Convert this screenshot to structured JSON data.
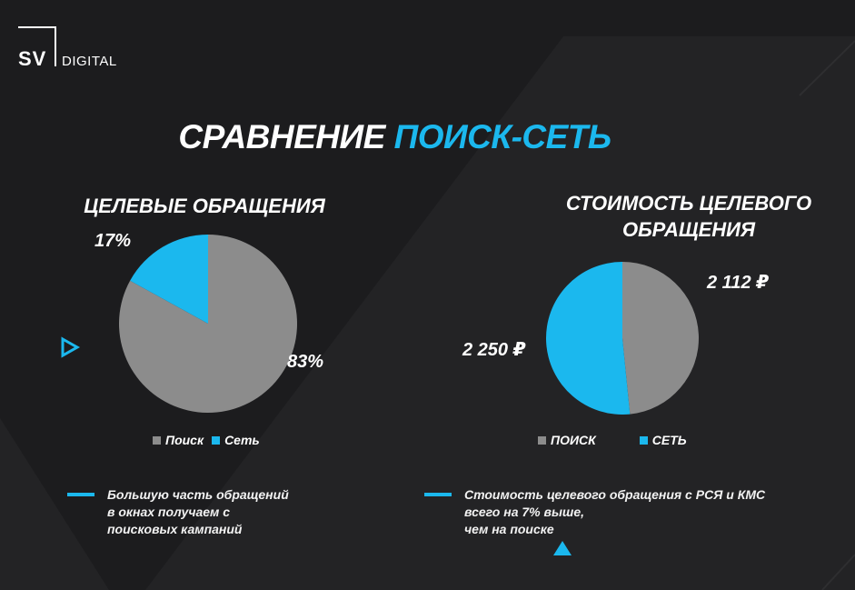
{
  "logo": {
    "sv": "SV",
    "digital": "DIGITAL"
  },
  "title": {
    "main": "СРАВНЕНИЕ ",
    "accent": "ПОИСК-СЕТЬ"
  },
  "colors": {
    "accent": "#1bb8ee",
    "gray": "#8c8c8c",
    "background": "#1c1c1e"
  },
  "chart_data": [
    {
      "type": "pie",
      "title": "ЦЕЛЕВЫЕ ОБРАЩЕНИЯ",
      "categories": [
        "Поиск",
        "Сеть"
      ],
      "values": [
        83,
        17
      ],
      "labels": [
        "83%",
        "17%"
      ],
      "colors": [
        "#8c8c8c",
        "#1bb8ee"
      ],
      "legend": "bottom"
    },
    {
      "type": "pie",
      "title": "СТОИМОСТЬ ЦЕЛЕВОГО ОБРАЩЕНИЯ",
      "categories": [
        "ПОИСК",
        "СЕТЬ"
      ],
      "values": [
        2112,
        2250
      ],
      "labels": [
        "2 112 ₽",
        "2 250 ₽"
      ],
      "colors": [
        "#8c8c8c",
        "#1bb8ee"
      ],
      "legend": "bottom"
    }
  ],
  "notes": {
    "left": "Большую часть обращений\nв окнах получаем с\nпоисковых кампаний",
    "right": "Стоимость целевого обращения с РСЯ и КМС\nвсего на 7% выше,\nчем на поиске"
  },
  "icons": {
    "play": "play-triangle-icon",
    "up": "up-triangle-icon"
  }
}
